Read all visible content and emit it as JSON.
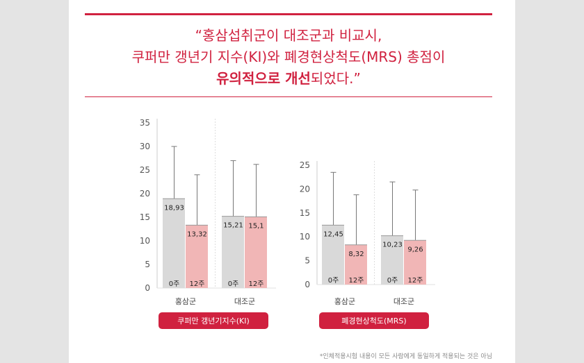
{
  "headline": {
    "line1": "“홍삼섭취군이 대조군과 비교시,",
    "line2": "쿠퍼만 갱년기 지수(KI)와 폐경현상척도(MRS) 총점이",
    "line3_emph": "유의적으로 개선",
    "line3_rest": "되었다.”"
  },
  "footnote": "*인체적용시험 내용이 모든 사람에게 동일하게 적용되는 것은 아님",
  "colors": {
    "accent": "#d0213f",
    "week0": "#d9d9d9",
    "week12": "#f1b6b6",
    "error_bar": "#777777",
    "gridline": "#dddddd"
  },
  "chart_data": [
    {
      "type": "bar",
      "title": "쿠퍼만 갱년기지수(KI)",
      "categories": [
        "홍삼군",
        "대조군"
      ],
      "series": [
        {
          "name": "0주",
          "values": [
            18.93,
            15.21
          ],
          "value_labels": [
            "18,93",
            "15,21"
          ],
          "error_upper": [
            30.0,
            27.0
          ]
        },
        {
          "name": "12주",
          "values": [
            13.32,
            15.1
          ],
          "value_labels": [
            "13,32",
            "15,1"
          ],
          "error_upper": [
            24.0,
            26.2
          ]
        }
      ],
      "yticks": [
        0,
        5,
        10,
        15,
        20,
        25,
        30,
        35
      ],
      "ylim": [
        0,
        35
      ],
      "grid": false
    },
    {
      "type": "bar",
      "title": "폐경현상척도(MRS)",
      "categories": [
        "홍삼군",
        "대조군"
      ],
      "series": [
        {
          "name": "0주",
          "values": [
            12.45,
            10.23
          ],
          "value_labels": [
            "12,45",
            "10,23"
          ],
          "error_upper": [
            23.5,
            21.5
          ]
        },
        {
          "name": "12주",
          "values": [
            8.32,
            9.26
          ],
          "value_labels": [
            "8,32",
            "9,26"
          ],
          "error_upper": [
            18.8,
            19.8
          ]
        }
      ],
      "yticks": [
        0,
        5,
        10,
        15,
        20,
        25
      ],
      "ylim": [
        0,
        25
      ],
      "grid": false
    }
  ]
}
